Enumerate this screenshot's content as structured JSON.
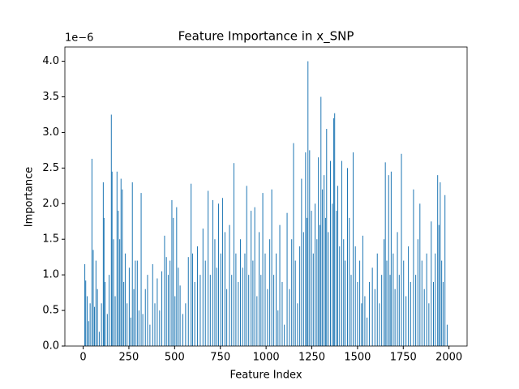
{
  "chart_data": {
    "type": "bar",
    "title": "Feature Importance in x_SNP",
    "x_label": "Feature Index",
    "y_label": "Importance",
    "offset_text": "1e−6",
    "color": "#1f77b4",
    "x": [
      9,
      14,
      22,
      30,
      38,
      48,
      55,
      62,
      70,
      78,
      88,
      100,
      110,
      114,
      120,
      132,
      142,
      154,
      158,
      166,
      175,
      185,
      192,
      200,
      207,
      214,
      222,
      230,
      240,
      252,
      260,
      269,
      277,
      285,
      296,
      305,
      317,
      326,
      340,
      352,
      365,
      380,
      392,
      405,
      418,
      430,
      445,
      455,
      465,
      475,
      485,
      493,
      502,
      511,
      520,
      530,
      545,
      560,
      575,
      590,
      598,
      610,
      625,
      640,
      655,
      668,
      683,
      695,
      709,
      720,
      730,
      740,
      752,
      762,
      775,
      785,
      800,
      812,
      824,
      835,
      848,
      860,
      872,
      884,
      894,
      905,
      918,
      928,
      938,
      950,
      962,
      972,
      982,
      995,
      1008,
      1020,
      1031,
      1042,
      1055,
      1065,
      1075,
      1088,
      1100,
      1115,
      1128,
      1140,
      1150,
      1160,
      1172,
      1184,
      1194,
      1205,
      1216,
      1223,
      1229,
      1238,
      1248,
      1258,
      1268,
      1278,
      1286,
      1294,
      1300,
      1308,
      1317,
      1325,
      1331,
      1340,
      1352,
      1362,
      1370,
      1375,
      1385,
      1392,
      1402,
      1414,
      1424,
      1432,
      1445,
      1455,
      1465,
      1476,
      1488,
      1500,
      1512,
      1522,
      1529,
      1540,
      1552,
      1565,
      1581,
      1595,
      1608,
      1620,
      1632,
      1645,
      1652,
      1660,
      1670,
      1678,
      1684,
      1695,
      1705,
      1718,
      1728,
      1740,
      1752,
      1765,
      1778,
      1790,
      1806,
      1818,
      1830,
      1841,
      1852,
      1865,
      1878,
      1890,
      1903,
      1915,
      1925,
      1938,
      1945,
      1952,
      1960,
      1968,
      1978,
      1990
    ],
    "values": [
      1.15,
      0.92,
      0.7,
      0.35,
      0.6,
      2.63,
      1.35,
      0.55,
      1.2,
      0.8,
      0.2,
      0.6,
      2.3,
      1.8,
      0.9,
      0.45,
      1.0,
      3.25,
      2.45,
      1.5,
      0.7,
      2.45,
      1.9,
      1.5,
      2.35,
      2.2,
      0.9,
      1.3,
      0.6,
      1.1,
      0.4,
      2.3,
      0.8,
      1.2,
      1.2,
      0.5,
      2.15,
      0.45,
      0.8,
      1.0,
      0.3,
      1.15,
      0.6,
      0.95,
      0.5,
      1.05,
      1.55,
      1.25,
      1.0,
      1.2,
      2.05,
      1.8,
      0.7,
      1.95,
      1.1,
      0.85,
      0.45,
      0.6,
      1.25,
      2.28,
      1.3,
      0.9,
      1.4,
      1.0,
      1.65,
      1.2,
      2.18,
      1.0,
      2.05,
      1.5,
      1.1,
      2.0,
      1.3,
      2.08,
      1.6,
      0.8,
      1.7,
      1.0,
      2.57,
      1.3,
      0.9,
      1.5,
      1.1,
      1.3,
      2.25,
      1.0,
      1.9,
      1.2,
      1.95,
      0.7,
      1.6,
      1.0,
      2.15,
      1.3,
      0.8,
      1.5,
      2.2,
      1.0,
      1.3,
      0.5,
      1.7,
      0.9,
      0.3,
      1.87,
      0.8,
      1.5,
      2.85,
      1.2,
      0.6,
      1.4,
      2.35,
      1.6,
      2.72,
      1.8,
      4.0,
      2.75,
      1.9,
      1.3,
      2.0,
      1.5,
      2.65,
      1.7,
      3.5,
      2.2,
      2.4,
      1.8,
      3.05,
      1.6,
      2.6,
      2.0,
      3.2,
      3.27,
      1.9,
      2.25,
      1.4,
      2.6,
      1.5,
      1.2,
      2.5,
      1.8,
      1.0,
      2.72,
      1.4,
      0.9,
      1.2,
      0.6,
      1.55,
      0.7,
      0.4,
      0.9,
      1.1,
      0.8,
      1.3,
      0.6,
      1.0,
      1.5,
      2.58,
      1.2,
      2.4,
      1.0,
      2.45,
      1.3,
      0.8,
      1.6,
      1.0,
      2.7,
      1.2,
      0.7,
      1.4,
      0.9,
      2.2,
      1.0,
      1.5,
      2.0,
      1.2,
      0.8,
      1.3,
      0.6,
      1.75,
      0.9,
      1.3,
      2.4,
      1.7,
      2.3,
      1.2,
      0.9,
      2.12,
      0.3
    ],
    "xlim": [
      -100,
      2099
    ],
    "ylim": [
      0,
      4.2
    ],
    "xticks": [
      0,
      250,
      500,
      750,
      1000,
      1250,
      1500,
      1750,
      2000
    ],
    "yticks": [
      {
        "value": 0,
        "label": "0.0"
      },
      {
        "value": 0.5,
        "label": "0.5"
      },
      {
        "value": 1,
        "label": "1.0"
      },
      {
        "value": 1.5,
        "label": "1.5"
      },
      {
        "value": 2,
        "label": "2.0"
      },
      {
        "value": 2.5,
        "label": "2.5"
      },
      {
        "value": 3,
        "label": "3.0"
      },
      {
        "value": 3.5,
        "label": "3.5"
      },
      {
        "value": 4,
        "label": "4.0"
      }
    ]
  }
}
